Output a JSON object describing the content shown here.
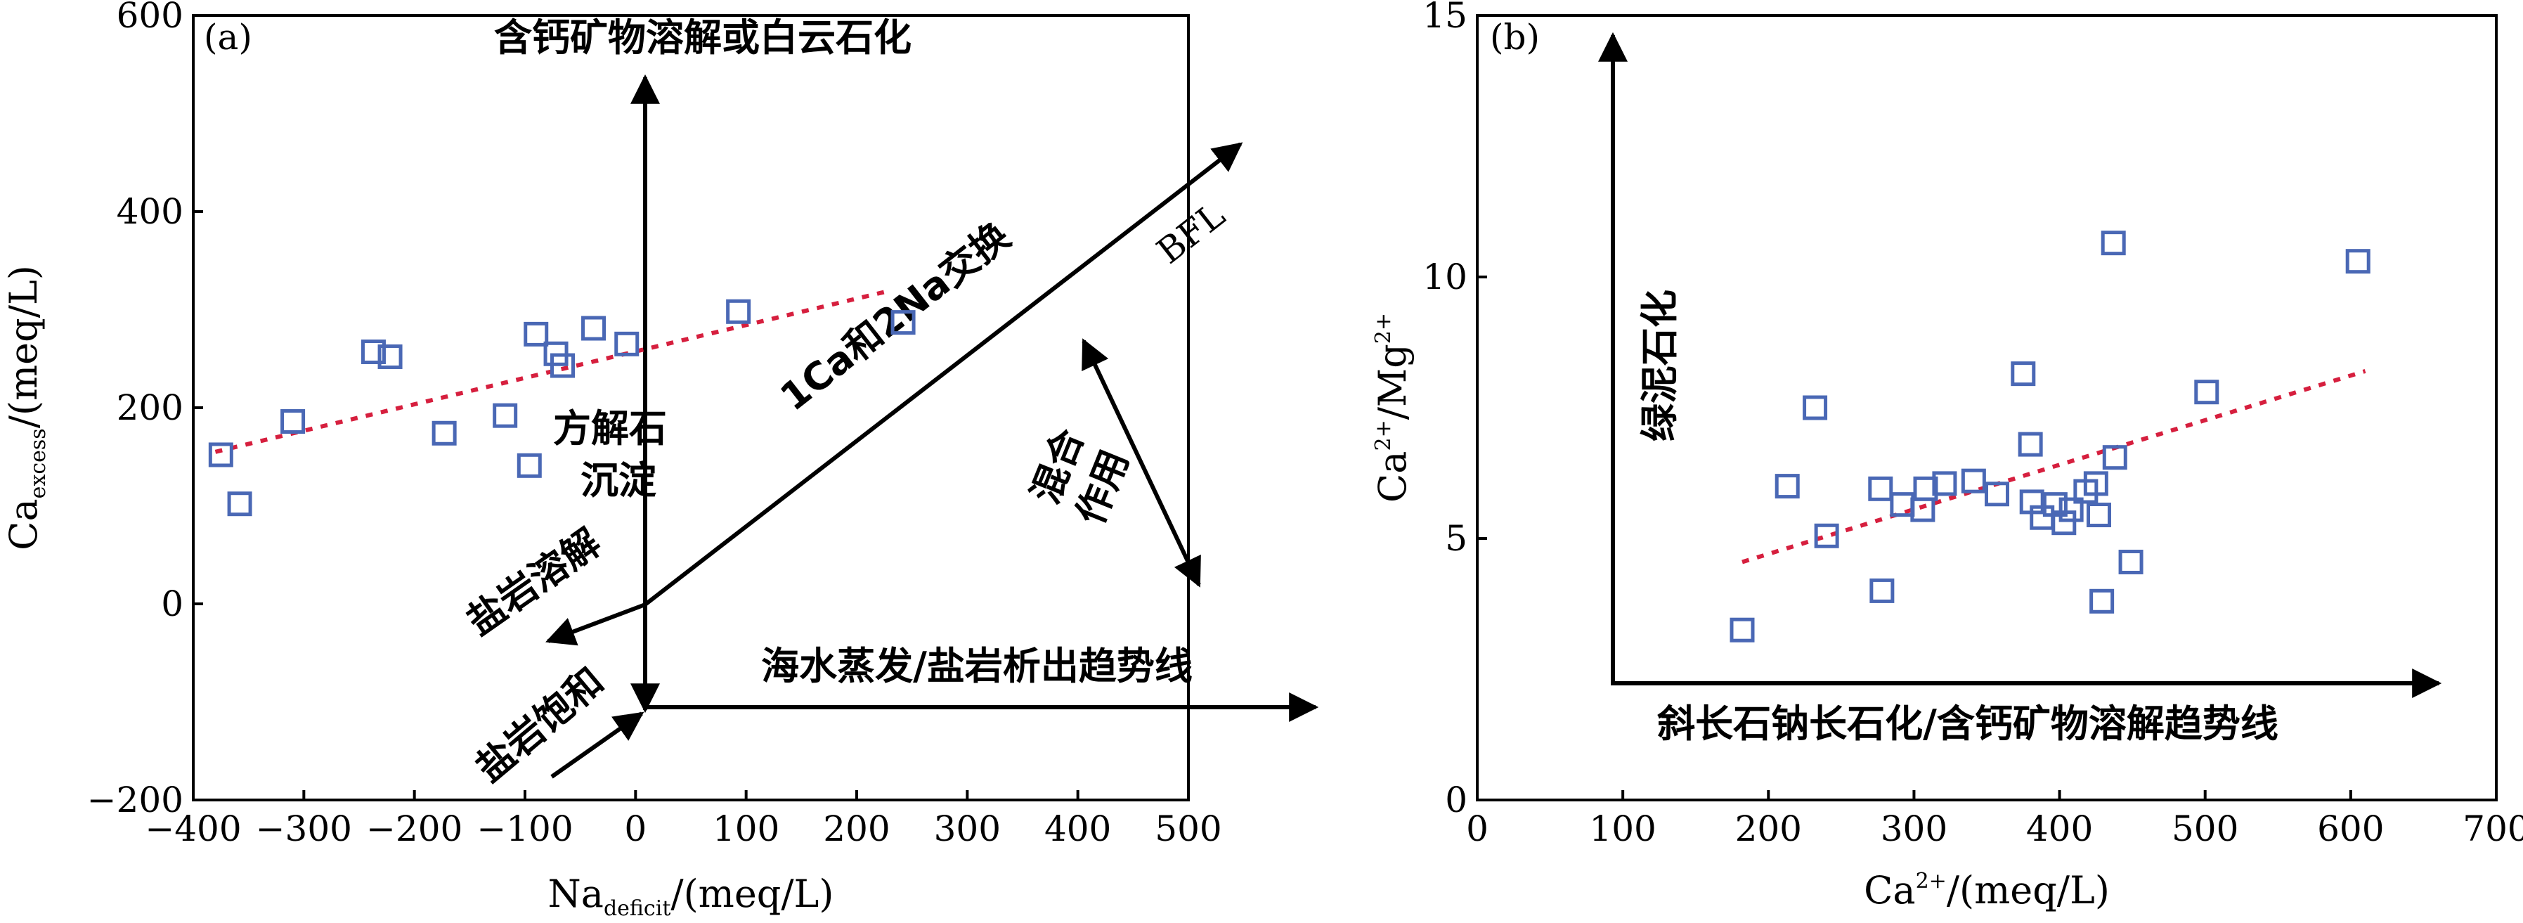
{
  "chart_data": [
    {
      "type": "scatter",
      "panel": "(a)",
      "xlabel": "Na",
      "xlabel_sub": "deficit",
      "xlabel_unit": "/(meq/L)",
      "ylabel": "Ca",
      "ylabel_sub": "excess",
      "ylabel_unit": "/(meq/L)",
      "xlim": [
        -400,
        500
      ],
      "ylim": [
        -200,
        600
      ],
      "xticks": [
        "−400",
        "−300",
        "−200",
        "−100",
        "0",
        "100",
        "200",
        "300",
        "400",
        "500"
      ],
      "yticks": [
        "−200",
        "0",
        "200",
        "400",
        "600"
      ],
      "points": [
        {
          "x": -375,
          "y": 152
        },
        {
          "x": -358,
          "y": 102
        },
        {
          "x": -310,
          "y": 186
        },
        {
          "x": -237,
          "y": 257
        },
        {
          "x": -222,
          "y": 252
        },
        {
          "x": -173,
          "y": 174
        },
        {
          "x": -118,
          "y": 192
        },
        {
          "x": -96,
          "y": 141
        },
        {
          "x": -90,
          "y": 275
        },
        {
          "x": -72,
          "y": 255
        },
        {
          "x": -66,
          "y": 243
        },
        {
          "x": -38,
          "y": 281
        },
        {
          "x": -8,
          "y": 265
        },
        {
          "x": 93,
          "y": 298
        },
        {
          "x": 242,
          "y": 287
        }
      ],
      "trendline": [
        [
          -380,
          155
        ],
        [
          225,
          318
        ]
      ],
      "annotations": {
        "top": "含钙矿物溶解或白云石化",
        "bfl": "BFL",
        "exchange": "1Ca和2Na交换",
        "calcite_1": "方解石",
        "calcite_2": "沉淀",
        "halite_dissolve": "盐岩溶解",
        "halite_saturate": "盐岩饱和",
        "mixing_1": "混合",
        "mixing_2": "作用",
        "evaporation": "海水蒸发/盐岩析出趋势线"
      }
    },
    {
      "type": "scatter",
      "panel": "(b)",
      "xlabel": "Ca",
      "xlabel_sup": "2+",
      "xlabel_unit": "/(meq/L)",
      "ylabel_a": "Ca",
      "ylabel_a_sup": "2+",
      "ylabel_b": "/Mg",
      "ylabel_b_sup": "2+",
      "xlim": [
        0,
        700
      ],
      "ylim": [
        0,
        15
      ],
      "xticks": [
        "0",
        "100",
        "200",
        "300",
        "400",
        "500",
        "600",
        "700"
      ],
      "yticks": [
        "0",
        "5",
        "10",
        "15"
      ],
      "points": [
        {
          "x": 182,
          "y": 3.25
        },
        {
          "x": 213,
          "y": 6.0
        },
        {
          "x": 232,
          "y": 7.5
        },
        {
          "x": 240,
          "y": 5.05
        },
        {
          "x": 277,
          "y": 5.95
        },
        {
          "x": 278,
          "y": 4.0
        },
        {
          "x": 292,
          "y": 5.65
        },
        {
          "x": 306,
          "y": 5.55
        },
        {
          "x": 308,
          "y": 5.95
        },
        {
          "x": 321,
          "y": 6.05
        },
        {
          "x": 341,
          "y": 6.1
        },
        {
          "x": 357,
          "y": 5.85
        },
        {
          "x": 375,
          "y": 8.15
        },
        {
          "x": 380,
          "y": 6.8
        },
        {
          "x": 381,
          "y": 5.7
        },
        {
          "x": 388,
          "y": 5.4
        },
        {
          "x": 397,
          "y": 5.65
        },
        {
          "x": 403,
          "y": 5.3
        },
        {
          "x": 408,
          "y": 5.55
        },
        {
          "x": 418,
          "y": 5.9
        },
        {
          "x": 425,
          "y": 6.05
        },
        {
          "x": 427,
          "y": 5.45
        },
        {
          "x": 429,
          "y": 3.8
        },
        {
          "x": 437,
          "y": 10.65
        },
        {
          "x": 438,
          "y": 6.55
        },
        {
          "x": 449,
          "y": 4.55
        },
        {
          "x": 501,
          "y": 7.8
        },
        {
          "x": 605,
          "y": 10.3
        }
      ],
      "trendline": [
        [
          182,
          4.55
        ],
        [
          610,
          8.2
        ]
      ],
      "annotations": {
        "chlorite": "绿泥石化",
        "trend": "斜长石钠长石化/含钙矿物溶解趋势线"
      }
    }
  ]
}
